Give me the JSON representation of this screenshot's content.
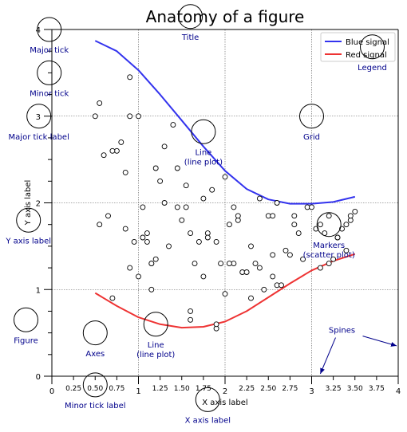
{
  "chart_data": {
    "type": "line",
    "title": "Anatomy of a figure",
    "xlabel": "X axis label",
    "ylabel": "Y axis label",
    "xlim": [
      0,
      4
    ],
    "ylim": [
      0,
      4
    ],
    "grid": true,
    "legend_placement": "top-right",
    "x_major_ticks": [
      0,
      1,
      2,
      3,
      4
    ],
    "x_major_tick_labels": [
      "0",
      "1",
      "2",
      "3",
      "4"
    ],
    "x_minor_ticks": [
      0.25,
      0.5,
      0.75,
      1.25,
      1.5,
      1.75,
      2.25,
      2.5,
      2.75,
      3.25,
      3.5,
      3.75
    ],
    "x_minor_tick_labels": [
      "0.25",
      "0.50",
      "0.75",
      "1.25",
      "1.50",
      "1.75",
      "2.25",
      "2.50",
      "2.75",
      "3.25",
      "3.50",
      "3.75"
    ],
    "y_major_ticks": [
      0,
      1,
      2,
      3,
      4
    ],
    "y_major_tick_labels": [
      "0",
      "1",
      "2",
      "3",
      "4"
    ],
    "y_minor_ticks": [
      0.25,
      0.5,
      0.75,
      1.25,
      1.5,
      1.75,
      2.25,
      2.5,
      2.75,
      3.25,
      3.5,
      3.75
    ],
    "series": [
      {
        "name": "Blue signal",
        "kind": "line",
        "color": "#3333ee",
        "x": [
          0.5,
          0.75,
          1.0,
          1.25,
          1.5,
          1.75,
          2.0,
          2.25,
          2.5,
          2.75,
          3.0,
          3.25,
          3.5
        ],
        "y": [
          3.87,
          3.75,
          3.53,
          3.25,
          2.95,
          2.65,
          2.37,
          2.16,
          2.04,
          1.99,
          1.99,
          2.01,
          2.07
        ]
      },
      {
        "name": "Red signal",
        "kind": "line",
        "color": "#ee3333",
        "x": [
          0.5,
          0.75,
          1.0,
          1.25,
          1.5,
          1.75,
          2.0,
          2.25,
          2.5,
          2.75,
          3.0,
          3.25,
          3.5
        ],
        "y": [
          0.96,
          0.81,
          0.68,
          0.6,
          0.56,
          0.57,
          0.63,
          0.75,
          0.91,
          1.07,
          1.22,
          1.33,
          1.41
        ]
      },
      {
        "name": "",
        "kind": "scatter",
        "color": "#000000",
        "x": [
          0.5,
          0.55,
          0.6,
          0.65,
          0.75,
          0.8,
          0.85,
          0.9,
          0.95,
          1.0,
          1.05,
          1.1,
          1.15,
          1.2,
          1.25,
          1.3,
          1.35,
          1.45,
          1.5,
          1.55,
          1.6,
          1.65,
          1.75,
          1.8,
          1.9,
          1.95,
          2.0,
          2.05,
          2.1,
          2.15,
          2.2,
          2.3,
          2.35,
          2.45,
          2.5,
          2.55,
          2.6,
          2.7,
          2.75,
          2.8,
          2.85,
          2.95,
          3.05,
          3.1,
          3.15,
          3.2,
          3.25,
          3.3,
          3.35,
          3.4,
          3.45,
          3.5,
          0.55,
          0.7,
          0.85,
          0.9,
          1.05,
          1.15,
          1.2,
          1.3,
          1.4,
          1.45,
          1.55,
          1.6,
          1.7,
          1.8,
          1.85,
          1.9,
          2.0,
          2.05,
          2.15,
          2.25,
          2.3,
          2.4,
          2.55,
          2.6,
          2.65,
          2.8,
          2.9,
          3.0,
          3.1,
          3.2,
          3.3,
          3.4,
          3.45,
          0.7,
          1.15,
          1.6,
          1.75,
          1.9,
          2.1,
          2.4,
          2.55,
          0.9,
          1.0,
          1.1
        ],
        "y": [
          3.0,
          3.15,
          2.55,
          1.85,
          2.6,
          2.7,
          2.35,
          3.45,
          1.55,
          3.0,
          1.95,
          1.65,
          1.3,
          2.4,
          2.25,
          2.65,
          1.5,
          1.95,
          1.8,
          1.95,
          1.65,
          1.3,
          2.05,
          1.65,
          1.55,
          1.3,
          2.3,
          1.75,
          1.3,
          1.8,
          1.2,
          1.5,
          1.3,
          1.0,
          1.85,
          1.4,
          1.05,
          1.45,
          1.4,
          1.75,
          1.65,
          1.95,
          1.7,
          1.75,
          1.65,
          1.3,
          1.35,
          1.6,
          1.7,
          1.45,
          1.8,
          1.9,
          1.75,
          2.6,
          1.7,
          3.0,
          1.6,
          1.3,
          1.35,
          2.0,
          2.9,
          2.4,
          2.2,
          0.75,
          1.55,
          1.6,
          2.15,
          0.55,
          0.95,
          1.3,
          1.85,
          1.2,
          0.9,
          2.05,
          1.85,
          2.0,
          1.05,
          1.85,
          1.35,
          1.95,
          1.25,
          1.85,
          1.6,
          1.75,
          1.85,
          0.9,
          1.0,
          0.65,
          1.15,
          0.6,
          1.95,
          1.25,
          1.15,
          1.25,
          1.15,
          1.55
        ]
      }
    ],
    "annotations": [
      {
        "text": "Major tick",
        "x": -0.03,
        "y": 4.0,
        "tx": -0.03,
        "ty": 3.75
      },
      {
        "text": "Minor tick",
        "x": -0.03,
        "y": 3.5,
        "tx": -0.03,
        "ty": 3.25
      },
      {
        "text": "Major tick label",
        "x": -0.15,
        "y": 3.0,
        "tx": -0.15,
        "ty": 2.75
      },
      {
        "text": "Title",
        "x": 1.6,
        "y": 4.15,
        "tx": 1.6,
        "ty": 3.9
      },
      {
        "text": "Legend",
        "x": 3.7,
        "y": 3.8,
        "tx": 3.7,
        "ty": 3.55
      },
      {
        "text": "Grid",
        "x": 3.0,
        "y": 3.0,
        "tx": 3.0,
        "ty": 2.75
      },
      {
        "text": "Line\n(line plot)",
        "x": 1.75,
        "y": 2.82,
        "tx": 1.75,
        "ty": 2.57
      },
      {
        "text": "Markers\n(scatter plot)",
        "x": 3.2,
        "y": 1.75,
        "tx": 3.2,
        "ty": 1.5
      },
      {
        "text": "Y axis label",
        "x": -0.27,
        "y": 1.8,
        "tx": -0.27,
        "ty": 1.55
      },
      {
        "text": "Figure",
        "x": -0.3,
        "y": 0.65,
        "tx": -0.3,
        "ty": 0.4
      },
      {
        "text": "Axes",
        "x": 0.5,
        "y": 0.5,
        "tx": 0.5,
        "ty": 0.25
      },
      {
        "text": "Line\n(line plot)",
        "x": 1.2,
        "y": 0.6,
        "tx": 1.2,
        "ty": 0.35
      },
      {
        "text": "Minor tick label",
        "x": 0.5,
        "y": -0.1,
        "tx": 0.5,
        "ty": -0.35
      },
      {
        "text": "X axis label",
        "x": 1.8,
        "y": -0.27,
        "tx": 1.8,
        "ty": -0.52
      }
    ],
    "spines_text": "Spines"
  }
}
